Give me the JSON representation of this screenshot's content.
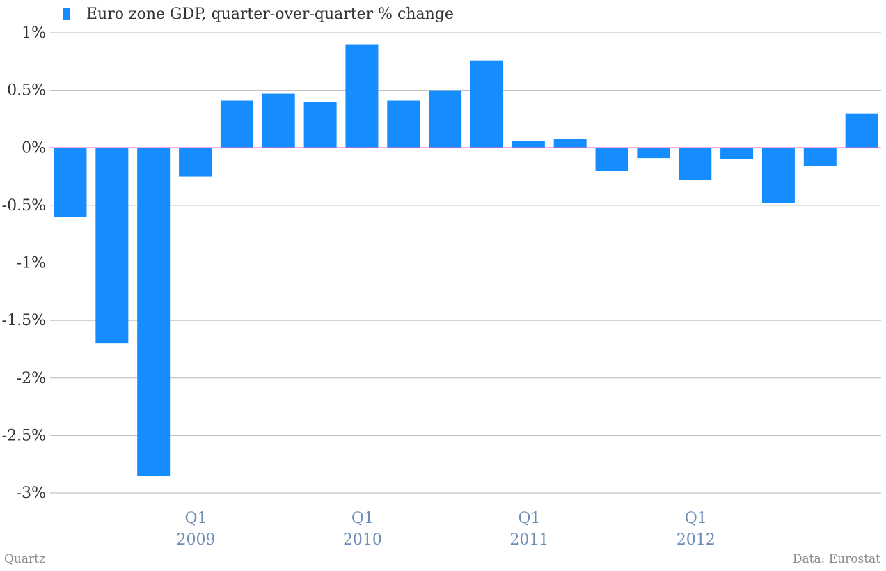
{
  "colors": {
    "bar": "#168dff",
    "zero_line": "#ff5ad0",
    "grid": "#b7b7b7",
    "y_tick_text": "#333333",
    "x_tick_text": "#6d8db5"
  },
  "legend": {
    "label": "Euro zone GDP, quarter-over-quarter % change"
  },
  "footer": {
    "source_left": "Quartz",
    "source_right": "Data: Eurostat"
  },
  "chart_data": {
    "type": "bar",
    "title": "",
    "xlabel": "",
    "ylabel": "",
    "ylim": [
      -3,
      1
    ],
    "grid": true,
    "legend_position": "top-left",
    "y_ticks": [
      {
        "value": 1,
        "label": "1%"
      },
      {
        "value": 0.5,
        "label": "0.5%"
      },
      {
        "value": 0,
        "label": "0%"
      },
      {
        "value": -0.5,
        "label": "-0.5%"
      },
      {
        "value": -1,
        "label": "-1%"
      },
      {
        "value": -1.5,
        "label": "-1.5%"
      },
      {
        "value": -2,
        "label": "-2%"
      },
      {
        "value": -2.5,
        "label": "-2.5%"
      },
      {
        "value": -3,
        "label": "-3%"
      }
    ],
    "categories": [
      "2008 Q2",
      "2008 Q3",
      "2008 Q4",
      "2009 Q1",
      "2009 Q2",
      "2009 Q3",
      "2009 Q4",
      "2010 Q1",
      "2010 Q2",
      "2010 Q3",
      "2010 Q4",
      "2011 Q1",
      "2011 Q2",
      "2011 Q3",
      "2011 Q4",
      "2012 Q1",
      "2012 Q2",
      "2012 Q3",
      "2012 Q4",
      "2013 Q1"
    ],
    "x_tick_labels": [
      {
        "index": 3,
        "quarter": "Q1",
        "year": "2009"
      },
      {
        "index": 7,
        "quarter": "Q1",
        "year": "2010"
      },
      {
        "index": 11,
        "quarter": "Q1",
        "year": "2011"
      },
      {
        "index": 15,
        "quarter": "Q1",
        "year": "2012"
      }
    ],
    "series": [
      {
        "values": [
          -0.6,
          -1.7,
          -2.85,
          -0.25,
          0.41,
          0.47,
          0.4,
          0.9,
          0.41,
          0.5,
          0.76,
          0.06,
          0.08,
          -0.2,
          -0.09,
          -0.28,
          -0.1,
          -0.48,
          -0.16,
          0.3
        ]
      }
    ]
  }
}
